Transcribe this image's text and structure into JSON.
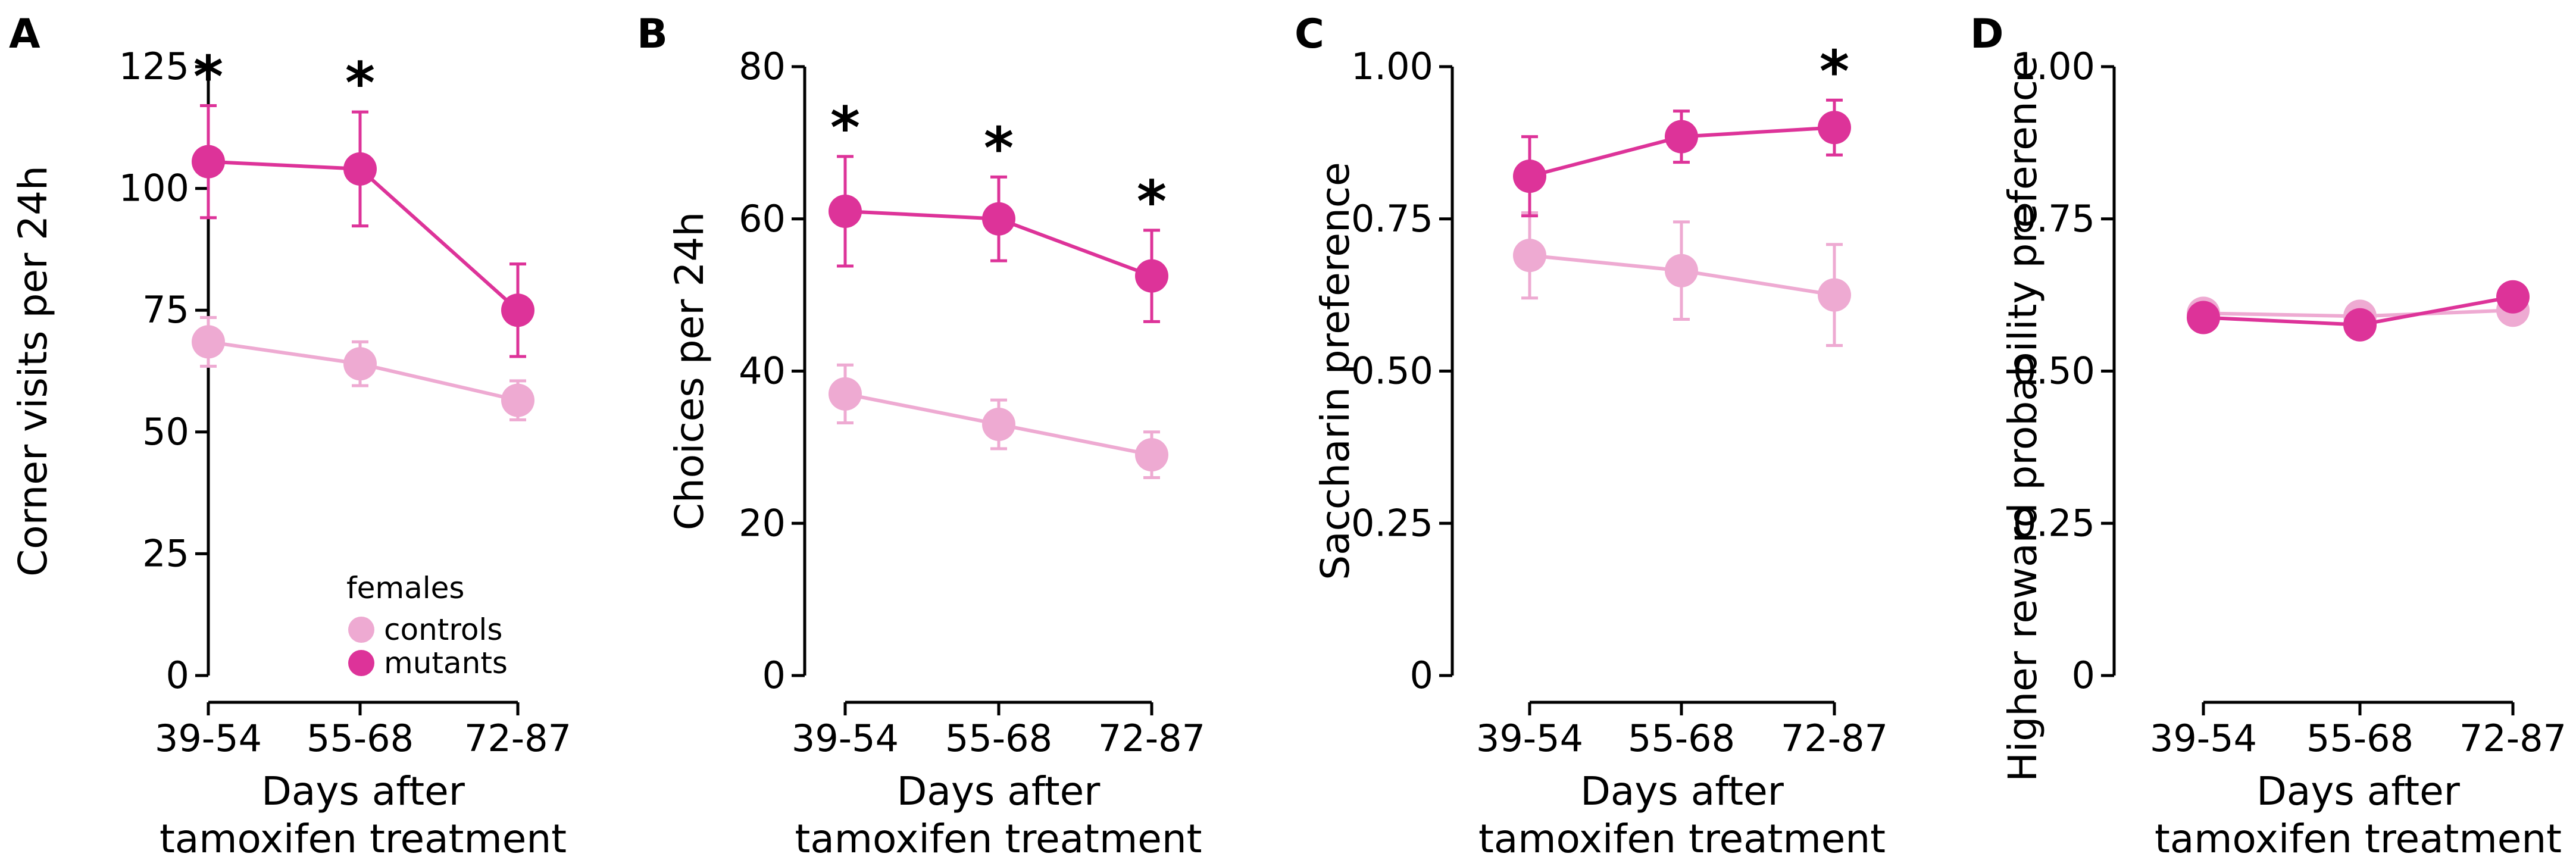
{
  "colors": {
    "controls": "#eeaad2",
    "mutants": "#dd3399"
  },
  "legend": {
    "title": "females",
    "items": [
      "controls",
      "mutants"
    ]
  },
  "chart_data": [
    {
      "panel": "A",
      "type": "line",
      "ylabel": "Corner visits per 24h",
      "xlabel_line1": "Days after",
      "xlabel_line2": "tamoxifen treatment",
      "categories": [
        "39-54",
        "55-68",
        "72-87"
      ],
      "ylim": [
        0,
        125
      ],
      "yticks": [
        0,
        25,
        50,
        75,
        100,
        125
      ],
      "ytick_labels": [
        "0",
        "25",
        "50",
        "75",
        "100",
        "125"
      ],
      "series": [
        {
          "name": "controls",
          "values": [
            68.5,
            64,
            56.5
          ],
          "err": [
            5,
            4.5,
            4
          ]
        },
        {
          "name": "mutants",
          "values": [
            105.5,
            104,
            75
          ],
          "err": [
            11.5,
            11.7,
            9.5
          ]
        }
      ],
      "significance": [
        "*",
        "*",
        ""
      ]
    },
    {
      "panel": "B",
      "type": "line",
      "ylabel": "Choices per 24h",
      "xlabel_line1": "Days after",
      "xlabel_line2": "tamoxifen treatment",
      "categories": [
        "39-54",
        "55-68",
        "72-87"
      ],
      "ylim": [
        0,
        80
      ],
      "yticks": [
        0,
        20,
        40,
        60,
        80
      ],
      "ytick_labels": [
        "0",
        "20",
        "40",
        "60",
        "80"
      ],
      "series": [
        {
          "name": "controls",
          "values": [
            37,
            33,
            29
          ],
          "err": [
            3.8,
            3.2,
            3
          ]
        },
        {
          "name": "mutants",
          "values": [
            61,
            60,
            52.5
          ],
          "err": [
            7.2,
            5.5,
            6
          ]
        }
      ],
      "significance": [
        "*",
        "*",
        "*"
      ]
    },
    {
      "panel": "C",
      "type": "line",
      "ylabel": "Saccharin preference",
      "xlabel_line1": "Days after",
      "xlabel_line2": "tamoxifen treatment",
      "categories": [
        "39-54",
        "55-68",
        "72-87"
      ],
      "ylim": [
        0,
        1
      ],
      "yticks": [
        0,
        0.25,
        0.5,
        0.75,
        1
      ],
      "ytick_labels": [
        "0",
        "0.25",
        "0.50",
        "0.75",
        "1.00"
      ],
      "series": [
        {
          "name": "controls",
          "values": [
            0.69,
            0.665,
            0.625
          ],
          "err": [
            0.07,
            0.08,
            0.083
          ]
        },
        {
          "name": "mutants",
          "values": [
            0.82,
            0.885,
            0.9
          ],
          "err": [
            0.065,
            0.042,
            0.045
          ]
        }
      ],
      "significance": [
        "",
        "",
        "*"
      ]
    },
    {
      "panel": "D",
      "type": "line",
      "ylabel": "Higher reward probability preference",
      "xlabel_line1": "Days after",
      "xlabel_line2": "tamoxifen treatment",
      "categories": [
        "39-54",
        "55-68",
        "72-87"
      ],
      "ylim": [
        0,
        1
      ],
      "yticks": [
        0,
        0.25,
        0.5,
        0.75,
        1
      ],
      "ytick_labels": [
        "0",
        "0.25",
        "0.50",
        "0.75",
        "1.00"
      ],
      "series": [
        {
          "name": "controls",
          "values": [
            0.595,
            0.59,
            0.6
          ],
          "err": [
            0.01,
            0.01,
            0.01
          ]
        },
        {
          "name": "mutants",
          "values": [
            0.588,
            0.576,
            0.622
          ],
          "err": [
            0.01,
            0.012,
            0.01
          ]
        }
      ],
      "significance": [
        "",
        "",
        ""
      ]
    }
  ]
}
